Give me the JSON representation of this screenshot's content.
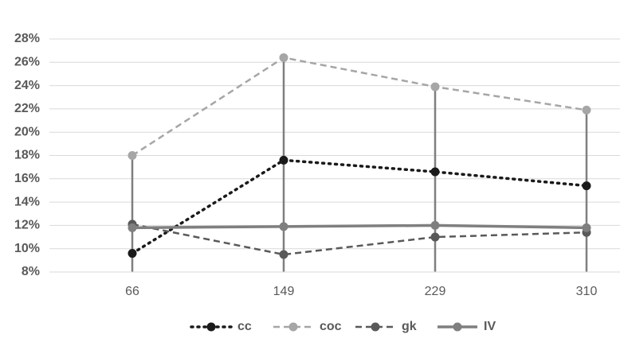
{
  "chart_data": {
    "type": "line",
    "categories": [
      "66",
      "149",
      "229",
      "310"
    ],
    "series": [
      {
        "name": "cc",
        "color": "#1a1a1a",
        "dash": "dotted",
        "values": [
          9.6,
          17.6,
          16.6,
          15.4
        ]
      },
      {
        "name": "coc",
        "color": "#a6a6a6",
        "dash": "dashed",
        "values": [
          18.0,
          26.4,
          23.9,
          21.9
        ]
      },
      {
        "name": "gk",
        "color": "#595959",
        "dash": "dashed",
        "values": [
          12.1,
          9.5,
          11.0,
          11.4
        ]
      },
      {
        "name": "IV",
        "color": "#7f7f7f",
        "dash": "solid",
        "values": [
          11.8,
          11.9,
          12.0,
          11.8
        ]
      }
    ],
    "ylim": [
      8,
      28
    ],
    "yticks": [
      {
        "value": 8,
        "label": "8%"
      },
      {
        "value": 10,
        "label": "10%"
      },
      {
        "value": 12,
        "label": "12%"
      },
      {
        "value": 14,
        "label": "14%"
      },
      {
        "value": 16,
        "label": "16%"
      },
      {
        "value": 18,
        "label": "18%"
      },
      {
        "value": 20,
        "label": "20%"
      },
      {
        "value": 22,
        "label": "22%"
      },
      {
        "value": 24,
        "label": "24%"
      },
      {
        "value": 26,
        "label": "26%"
      },
      {
        "value": 28,
        "label": "28%"
      }
    ],
    "grid": true,
    "legend": "bottom",
    "drop_lines": true
  }
}
